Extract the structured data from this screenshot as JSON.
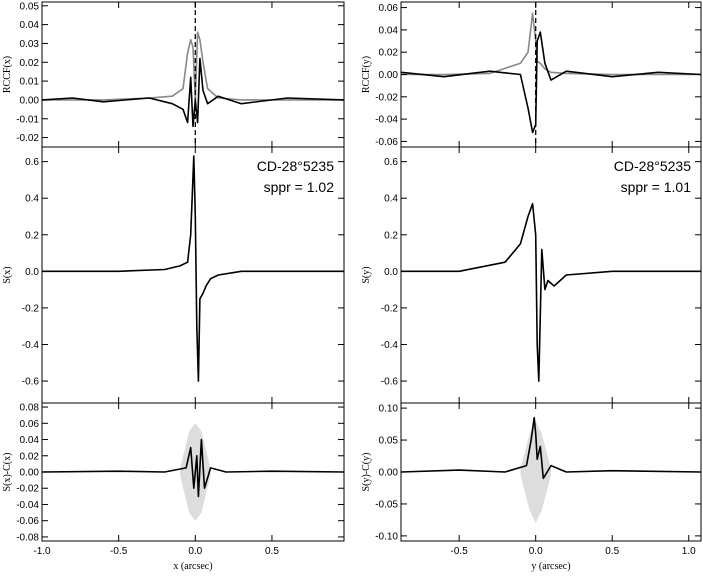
{
  "figure": {
    "panels": [
      {
        "name": "left-top",
        "ylabel": "RCCF(x)",
        "ylim": [
          -0.025,
          0.052
        ],
        "xlim": [
          -1.0,
          0.97
        ],
        "yticks": [
          0.05,
          0.04,
          0.03,
          0.02,
          0.01,
          0.0,
          -0.01,
          -0.02
        ],
        "ytick_labels": [
          "0.05",
          "0.04",
          "0.03",
          "0.02",
          "0.01",
          "0.00",
          "-0.01",
          "-0.02"
        ],
        "xticks": [
          -1.0,
          -0.5,
          0.0,
          0.5
        ],
        "show_xtick_labels": false,
        "dashed_vline_x": 0.0
      },
      {
        "name": "left-middle",
        "ylabel": "S(x)",
        "ylim": [
          -0.72,
          0.68
        ],
        "xlim": [
          -1.0,
          0.97
        ],
        "yticks": [
          0.6,
          0.4,
          0.2,
          0.0,
          -0.2,
          -0.4,
          -0.6
        ],
        "ytick_labels": [
          "0.6",
          "0.4",
          "0.2",
          "0.0",
          "-0.2",
          "-0.4",
          "-0.6"
        ],
        "xticks": [
          -1.0,
          -0.5,
          0.0,
          0.5
        ],
        "show_xtick_labels": false,
        "annotation": [
          "CD-28°5235",
          "sppr = 1.02"
        ]
      },
      {
        "name": "left-bottom",
        "ylabel": "S(x)-C(x)",
        "ylim": [
          -0.085,
          0.085
        ],
        "xlim": [
          -1.0,
          0.97
        ],
        "yticks": [
          0.08,
          0.06,
          0.04,
          0.02,
          0.0,
          -0.02,
          -0.04,
          -0.06,
          -0.08
        ],
        "ytick_labels": [
          "0.08",
          "0.06",
          "0.04",
          "0.02",
          "0.00",
          "-0.02",
          "-0.04",
          "-0.06",
          "-0.08"
        ],
        "xticks": [
          -1.0,
          -0.5,
          0.0,
          0.5
        ],
        "show_xtick_labels": true,
        "xtick_labels": [
          "-1.0",
          "-0.5",
          "0.0",
          "0.5"
        ],
        "xlabel": "x (arcsec)"
      },
      {
        "name": "right-top",
        "ylabel": "RCCF(y)",
        "ylim": [
          -0.065,
          0.065
        ],
        "xlim": [
          -0.88,
          1.08
        ],
        "yticks": [
          0.06,
          0.04,
          0.02,
          0.0,
          -0.02,
          -0.04,
          -0.06
        ],
        "ytick_labels": [
          "0.06",
          "0.04",
          "0.02",
          "0.00",
          "-0.02",
          "-0.04",
          "-0.06"
        ],
        "xticks": [
          -0.5,
          0.0,
          0.5,
          1.0
        ],
        "show_xtick_labels": false,
        "dashed_vline_x": 0.0
      },
      {
        "name": "right-middle",
        "ylabel": "S(y)",
        "ylim": [
          -0.72,
          0.68
        ],
        "xlim": [
          -0.88,
          1.08
        ],
        "yticks": [
          0.6,
          0.4,
          0.2,
          0.0,
          -0.2,
          -0.4,
          -0.6
        ],
        "ytick_labels": [
          "0.6",
          "0.4",
          "0.2",
          "0.0",
          "-0.2",
          "-0.4",
          "-0.6"
        ],
        "xticks": [
          -0.5,
          0.0,
          0.5,
          1.0
        ],
        "show_xtick_labels": false,
        "annotation": [
          "CD-28°5235",
          "sppr = 1.01"
        ]
      },
      {
        "name": "right-bottom",
        "ylabel": "S(y)-C(y)",
        "ylim": [
          -0.108,
          0.108
        ],
        "xlim": [
          -0.88,
          1.08
        ],
        "yticks": [
          0.1,
          0.05,
          0.0,
          -0.05,
          -0.1
        ],
        "ytick_labels": [
          "0.10",
          "0.05",
          "0.00",
          "-0.05",
          "-0.10"
        ],
        "xticks": [
          -0.5,
          0.0,
          0.5,
          1.0
        ],
        "show_xtick_labels": true,
        "xtick_labels": [
          "-0.5",
          "0.0",
          "0.5",
          "1.0"
        ],
        "xlabel": "y (arcsec)"
      }
    ]
  },
  "chart_data": [
    {
      "type": "line",
      "panel": "left-top",
      "x": [
        -1.0,
        -0.8,
        -0.6,
        -0.3,
        -0.15,
        -0.08,
        -0.05,
        -0.03,
        -0.015,
        0.0,
        0.015,
        0.03,
        0.05,
        0.08,
        0.15,
        0.3,
        0.6,
        0.97
      ],
      "series": [
        {
          "color": "#000000",
          "values": [
            0.0,
            0.001,
            -0.001,
            0.001,
            -0.002,
            -0.005,
            -0.012,
            0.012,
            -0.014,
            0.0,
            -0.012,
            0.022,
            0.005,
            -0.002,
            0.002,
            -0.002,
            0.001,
            0.0
          ]
        },
        {
          "color": "#888888",
          "values": [
            0.0,
            0.0,
            0.0,
            0.001,
            0.002,
            0.006,
            0.025,
            0.032,
            0.028,
            0.0,
            0.036,
            0.032,
            0.02,
            0.006,
            0.001,
            0.0,
            0.0,
            0.0
          ]
        }
      ]
    },
    {
      "type": "line",
      "panel": "left-middle",
      "x": [
        -1.0,
        -0.5,
        -0.2,
        -0.1,
        -0.05,
        -0.03,
        -0.01,
        0.0,
        0.01,
        0.02,
        0.03,
        0.05,
        0.07,
        0.1,
        0.15,
        0.3,
        0.6,
        0.97
      ],
      "series": [
        {
          "color": "#000000",
          "values": [
            0.0,
            0.0,
            0.01,
            0.03,
            0.05,
            0.2,
            0.63,
            0.3,
            -0.3,
            -0.6,
            -0.15,
            -0.12,
            -0.08,
            -0.04,
            -0.02,
            0.0,
            0.0,
            0.0
          ]
        }
      ]
    },
    {
      "type": "line",
      "panel": "left-bottom",
      "x": [
        -1.0,
        -0.5,
        -0.2,
        -0.06,
        -0.03,
        -0.01,
        0.0,
        0.01,
        0.02,
        0.04,
        0.06,
        0.1,
        0.2,
        0.5,
        0.97
      ],
      "series": [
        {
          "color": "#000000",
          "values": [
            0.0,
            0.001,
            0.0,
            0.005,
            0.03,
            -0.02,
            0.0,
            0.02,
            -0.03,
            0.04,
            -0.02,
            0.005,
            0.0,
            0.001,
            0.0
          ]
        }
      ],
      "envelope": {
        "color": "#dddddd",
        "x": [
          -0.1,
          -0.04,
          0.0,
          0.04,
          0.1
        ],
        "upper": [
          0.004,
          0.05,
          0.06,
          0.05,
          0.004
        ],
        "lower": [
          -0.004,
          -0.05,
          -0.06,
          -0.05,
          -0.004
        ]
      }
    },
    {
      "type": "line",
      "panel": "right-top",
      "x": [
        -0.88,
        -0.6,
        -0.3,
        -0.1,
        -0.05,
        -0.02,
        0.0,
        0.01,
        0.03,
        0.06,
        0.1,
        0.2,
        0.5,
        0.8,
        1.08
      ],
      "series": [
        {
          "color": "#000000",
          "values": [
            0.002,
            -0.002,
            0.003,
            0.0,
            -0.03,
            -0.052,
            -0.045,
            0.03,
            0.038,
            0.01,
            -0.005,
            0.003,
            -0.002,
            0.002,
            0.0
          ]
        },
        {
          "color": "#888888",
          "values": [
            0.0,
            0.0,
            0.001,
            0.01,
            0.02,
            0.055,
            0.03,
            0.012,
            0.01,
            0.005,
            0.002,
            0.001,
            0.0,
            0.0,
            0.0
          ]
        }
      ]
    },
    {
      "type": "line",
      "panel": "right-middle",
      "x": [
        -0.88,
        -0.5,
        -0.2,
        -0.1,
        -0.05,
        -0.02,
        0.0,
        0.01,
        0.02,
        0.04,
        0.06,
        0.08,
        0.12,
        0.2,
        0.5,
        1.08
      ],
      "series": [
        {
          "color": "#000000",
          "values": [
            0.0,
            0.0,
            0.05,
            0.15,
            0.3,
            0.37,
            0.2,
            -0.4,
            -0.6,
            0.12,
            -0.1,
            -0.05,
            -0.08,
            -0.02,
            0.0,
            0.0
          ]
        }
      ]
    },
    {
      "type": "line",
      "panel": "right-bottom",
      "x": [
        -0.88,
        -0.5,
        -0.2,
        -0.06,
        -0.03,
        -0.01,
        0.0,
        0.01,
        0.03,
        0.05,
        0.1,
        0.2,
        0.5,
        1.08
      ],
      "series": [
        {
          "color": "#000000",
          "values": [
            0.0,
            0.003,
            0.0,
            0.01,
            0.05,
            0.085,
            0.06,
            0.02,
            0.04,
            -0.01,
            0.01,
            0.0,
            0.002,
            0.0
          ]
        }
      ],
      "envelope": {
        "color": "#dddddd",
        "x": [
          -0.1,
          -0.04,
          0.0,
          0.04,
          0.1
        ],
        "upper": [
          0.004,
          0.06,
          0.08,
          0.06,
          0.004
        ],
        "lower": [
          -0.004,
          -0.06,
          -0.08,
          -0.06,
          -0.004
        ]
      }
    }
  ]
}
